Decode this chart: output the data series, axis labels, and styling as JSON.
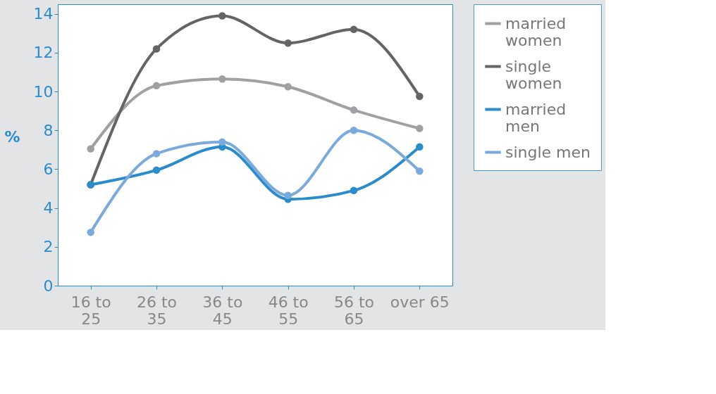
{
  "chart_data": {
    "type": "line",
    "ylabel": "%",
    "categories": [
      "16 to 25",
      "26 to 35",
      "36 to 45",
      "46 to 55",
      "56 to 65",
      "over 65"
    ],
    "series": [
      {
        "name": "married women",
        "color": "#a0a0a3",
        "values": [
          7.05,
          10.3,
          10.65,
          10.25,
          9.05,
          8.1
        ]
      },
      {
        "name": "single women",
        "color": "#646464",
        "values": [
          5.2,
          12.2,
          13.9,
          12.5,
          13.2,
          9.75
        ]
      },
      {
        "name": "married men",
        "color": "#2a8ccc",
        "values": [
          5.2,
          5.95,
          7.15,
          4.45,
          4.9,
          7.15
        ]
      },
      {
        "name": "single men",
        "color": "#7aaadc",
        "values": [
          2.75,
          6.8,
          7.4,
          4.65,
          8.0,
          5.9
        ]
      }
    ],
    "ylim": [
      0,
      14.5
    ],
    "yticks": [
      0,
      2,
      4,
      6,
      8,
      10,
      12,
      14
    ],
    "grid": false,
    "legend": "right",
    "marker": "circle",
    "line_style": "solid"
  }
}
